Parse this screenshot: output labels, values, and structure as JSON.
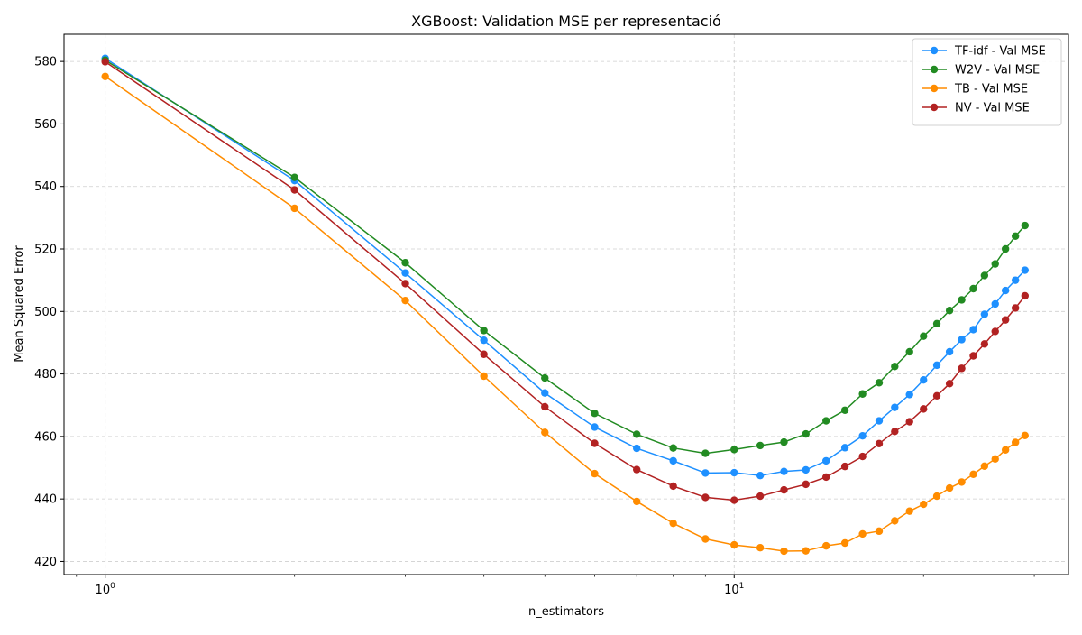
{
  "chart_data": {
    "type": "line",
    "title": "XGBoost: Validation MSE per representació",
    "xlabel": "n_estimators",
    "ylabel": "Mean Squared Error",
    "xscale": "log",
    "xlim": [
      0.86,
      34
    ],
    "ylim": [
      415.8,
      588.7
    ],
    "x_ticks": [
      {
        "value": 1,
        "base": "10",
        "exp": "0"
      },
      {
        "value": 10,
        "base": "10",
        "exp": "1"
      }
    ],
    "y_ticks": [
      420,
      440,
      460,
      480,
      500,
      520,
      540,
      560,
      580
    ],
    "grid": true,
    "legend_position": "top-right",
    "x": [
      1,
      2,
      3,
      4,
      5,
      6,
      7,
      8,
      9,
      10,
      11,
      12,
      13,
      14,
      15,
      16,
      17,
      18,
      19,
      20,
      21,
      22,
      23,
      24,
      25,
      26,
      27,
      28,
      29
    ],
    "series": [
      {
        "name": "TF-idf - Val MSE",
        "color": "#1e90ff",
        "values": [
          581.0,
          541.9,
          512.3,
          490.8,
          473.9,
          463.0,
          456.2,
          452.2,
          448.3,
          448.4,
          447.5,
          448.8,
          449.3,
          452.2,
          456.4,
          460.2,
          465.0,
          469.3,
          473.4,
          478.1,
          482.8,
          487.1,
          491.0,
          494.2,
          499.1,
          502.4,
          506.7,
          510.0,
          513.2
        ]
      },
      {
        "name": "W2V - Val MSE",
        "color": "#228b22",
        "values": [
          580.4,
          542.9,
          515.6,
          493.9,
          478.7,
          467.4,
          460.7,
          456.3,
          454.6,
          455.8,
          457.1,
          458.2,
          460.8,
          465.0,
          468.4,
          473.6,
          477.2,
          482.4,
          487.1,
          492.1,
          496.1,
          500.3,
          503.7,
          507.3,
          511.5,
          515.2,
          520.0,
          524.1,
          527.5
        ]
      },
      {
        "name": "TB - Val MSE",
        "color": "#ff8c00",
        "values": [
          575.2,
          533.0,
          503.5,
          479.3,
          461.3,
          448.1,
          439.2,
          432.2,
          427.2,
          425.3,
          424.4,
          423.3,
          423.4,
          425.0,
          425.9,
          428.8,
          429.7,
          433.0,
          436.1,
          438.3,
          440.9,
          443.5,
          445.4,
          447.9,
          450.5,
          452.8,
          455.7,
          458.1,
          460.3
        ]
      },
      {
        "name": "NV - Val MSE",
        "color": "#b22222",
        "values": [
          579.9,
          538.9,
          508.9,
          486.3,
          469.5,
          457.8,
          449.4,
          444.1,
          440.5,
          439.6,
          440.9,
          442.9,
          444.7,
          447.0,
          450.4,
          453.6,
          457.7,
          461.6,
          464.7,
          468.8,
          473.0,
          476.9,
          481.8,
          485.8,
          489.6,
          493.6,
          497.3,
          501.1,
          505.0
        ]
      }
    ]
  }
}
